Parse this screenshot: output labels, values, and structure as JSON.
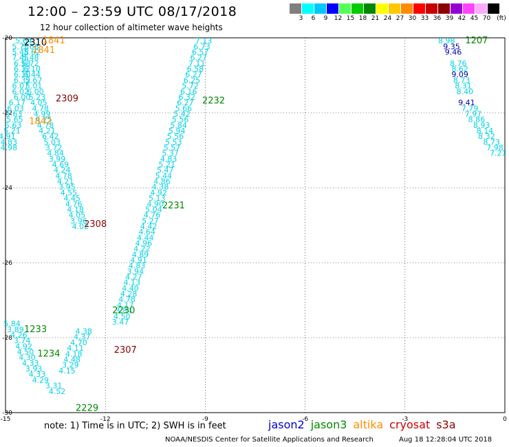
{
  "header": {
    "title": "12:00 – 23:59 UTC 08/17/2018",
    "subtitle": "12 hour collection of altimeter wave heights"
  },
  "color_scale": {
    "unit": "(ft)",
    "bins": [
      {
        "color": "#7f7f7f",
        "label": "3"
      },
      {
        "color": "#00ffff",
        "label": "6"
      },
      {
        "color": "#00c8ff",
        "label": "9"
      },
      {
        "color": "#0000ff",
        "label": "12"
      },
      {
        "color": "#55ff55",
        "label": "15"
      },
      {
        "color": "#00cc00",
        "label": "18"
      },
      {
        "color": "#008800",
        "label": "21"
      },
      {
        "color": "#ffff00",
        "label": "24"
      },
      {
        "color": "#ffc800",
        "label": "27"
      },
      {
        "color": "#ff8c00",
        "label": "30"
      },
      {
        "color": "#ff0000",
        "label": "33"
      },
      {
        "color": "#c80000",
        "label": "36"
      },
      {
        "color": "#8b0000",
        "label": "39"
      },
      {
        "color": "#9400d3",
        "label": "42"
      },
      {
        "color": "#ff44ff",
        "label": "45"
      },
      {
        "color": "#ffaaff",
        "label": "70"
      },
      {
        "color": "#000000",
        "label": ""
      }
    ]
  },
  "axes": {
    "lon_ticks": [
      "-15",
      "-12",
      "-9",
      "-6",
      "-3",
      "0"
    ],
    "lat_ticks": [
      "-20",
      "-22",
      "-24",
      "-26",
      "-28",
      "-30"
    ]
  },
  "colors": {
    "swh_light": "#00d2e6",
    "swh_dark": "#0000aa",
    "jason2": "#0000cc",
    "jason3": "#008800",
    "altika": "#ff8c00",
    "cryosat": "#cc0000",
    "s3a": "#8b0000",
    "time_black": "#000000"
  },
  "tracks": [
    {
      "values": [
        "5.64",
        "5.73",
        "5.48",
        "7.45",
        "6.58",
        "6.12",
        "6.10",
        "6.32",
        "6.07",
        "6.02",
        "6.00",
        "6.17",
        "6.03",
        "5.63",
        "5.65",
        "5.63",
        "5.21",
        "4.91",
        "4.83",
        "4.98"
      ],
      "lats": [
        -20.15,
        -20.3,
        -20.45,
        -20.6,
        -20.75,
        -20.9,
        -21.05,
        -21.2,
        -21.35,
        -21.5,
        -21.65,
        -21.8,
        -21.95,
        -22.1,
        -22.25,
        -22.4,
        -22.55,
        -22.7,
        -22.85,
        -23.0
      ],
      "lons": [
        -14.45,
        -14.55,
        -14.55,
        -14.55,
        -14.5,
        -14.5,
        -14.5,
        -14.5,
        -14.55,
        -14.55,
        -14.5,
        -14.65,
        -14.7,
        -14.75,
        -14.72,
        -14.77,
        -14.8,
        -14.95,
        -14.9,
        -14.9
      ],
      "shade": "light"
    },
    {
      "values": [
        "5.68",
        "5.62",
        "5.48",
        "6.72",
        "6.10",
        "6.44",
        "5.67",
        "5.01",
        "6.00",
        "5.23",
        "4.05",
        "4.78",
        "4.99",
        "4.75",
        "4.78",
        "4.21",
        "6.42",
        "5.03",
        "3.72",
        "4.84",
        "3.99",
        "4.69",
        "4.24",
        "4.78",
        "4.21",
        "3.95",
        "4.55",
        "4.45",
        "4.76",
        "4.18",
        "4.05",
        "3.96",
        "4.02"
      ],
      "lats": [
        -20.3,
        -20.45,
        -20.6,
        -20.75,
        -20.9,
        -21.05,
        -21.2,
        -21.35,
        -21.5,
        -21.65,
        -21.8,
        -21.95,
        -22.1,
        -22.25,
        -22.4,
        -22.55,
        -22.7,
        -22.85,
        -23.0,
        -23.15,
        -23.3,
        -23.45,
        -23.6,
        -23.75,
        -23.9,
        -24.05,
        -24.2,
        -24.35,
        -24.5,
        -24.65,
        -24.8,
        -24.95,
        -25.1
      ],
      "lons": [
        -14.25,
        -14.2,
        -14.25,
        -14.25,
        -14.2,
        -14.2,
        -14.15,
        -14.15,
        -14.1,
        -14.05,
        -14.0,
        -13.95,
        -13.9,
        -13.85,
        -13.8,
        -13.75,
        -13.65,
        -13.6,
        -13.55,
        -13.5,
        -13.45,
        -13.35,
        -13.3,
        -13.25,
        -13.2,
        -13.15,
        -13.1,
        -13.0,
        -12.95,
        -12.9,
        -12.85,
        -12.8,
        -12.75
      ],
      "shade": "light"
    },
    {
      "values": [
        "7.13",
        "6.73",
        "6.57",
        "6.27",
        "7.11",
        "6.58",
        "6.27",
        "6.25",
        "5.72",
        "6.16",
        "6.32",
        "6.27",
        "5.66",
        "5.42",
        "5.56",
        "5.84",
        "5.94",
        "5.56",
        "5.53",
        "5.57",
        "5.37",
        "4.83",
        "5.21",
        "5.47",
        "5.44",
        "4.86",
        "4.38",
        "4.92",
        "5.13",
        "4.90",
        "5.04",
        "4.76",
        "5.27",
        "4.42",
        "4.64",
        "4.44",
        "4.96",
        "4.22",
        "4.89",
        "4.91",
        "4.83",
        "3.94",
        "4.27",
        "4.13",
        "4.40",
        "4.28",
        "4.78",
        "4.17",
        "3.84",
        "4.50",
        "3.47"
      ],
      "lats": [
        -20.15,
        -20.3,
        -20.45,
        -20.6,
        -20.75,
        -20.9,
        -21.05,
        -21.2,
        -21.35,
        -21.5,
        -21.65,
        -21.8,
        -21.95,
        -22.1,
        -22.25,
        -22.4,
        -22.55,
        -22.7,
        -22.85,
        -23.0,
        -23.15,
        -23.3,
        -23.45,
        -23.6,
        -23.75,
        -23.9,
        -24.05,
        -24.2,
        -24.35,
        -24.5,
        -24.65,
        -24.8,
        -24.95,
        -25.1,
        -25.25,
        -25.4,
        -25.55,
        -25.7,
        -25.85,
        -26.0,
        -26.15,
        -26.3,
        -26.45,
        -26.6,
        -26.75,
        -26.9,
        -27.05,
        -27.2,
        -27.35,
        -27.5,
        -27.65
      ],
      "lons": [
        -9.05,
        -9.1,
        -9.15,
        -9.2,
        -9.25,
        -9.3,
        -9.35,
        -9.4,
        -9.45,
        -9.5,
        -9.55,
        -9.6,
        -9.65,
        -9.7,
        -9.75,
        -9.8,
        -9.85,
        -9.9,
        -9.95,
        -10.0,
        -10.05,
        -10.1,
        -10.15,
        -10.2,
        -10.25,
        -10.3,
        -10.35,
        -10.4,
        -10.45,
        -10.5,
        -10.55,
        -10.6,
        -10.65,
        -10.7,
        -10.75,
        -10.8,
        -10.85,
        -10.9,
        -10.95,
        -11.0,
        -11.05,
        -11.1,
        -11.15,
        -11.2,
        -11.25,
        -11.3,
        -11.35,
        -11.4,
        -11.45,
        -11.5,
        -11.55
      ],
      "shade": "light"
    },
    {
      "values": [
        "8.98",
        "8.76",
        "8.62",
        "8.73",
        "8.31",
        "8.40",
        "7.79",
        "7.97",
        "8.86",
        "8.93",
        "8.14",
        "8.32",
        "8.73",
        "7.98",
        "7.21"
      ],
      "lats": [
        -20.15,
        -20.75,
        -20.9,
        -21.2,
        -21.35,
        -21.5,
        -21.95,
        -22.1,
        -22.25,
        -22.4,
        -22.55,
        -22.7,
        -22.85,
        -23.0,
        -23.15
      ],
      "lons": [
        -1.75,
        -1.4,
        -1.35,
        -1.3,
        -1.25,
        -1.2,
        -1.05,
        -0.95,
        -0.85,
        -0.7,
        -0.6,
        -0.55,
        -0.4,
        -0.3,
        -0.2
      ],
      "shade": "light"
    },
    {
      "values": [
        "9.35",
        "9.46",
        "9.09",
        "9.41"
      ],
      "lats": [
        -20.3,
        -20.45,
        -21.05,
        -21.8
      ],
      "lons": [
        -1.6,
        -1.55,
        -1.35,
        -1.15
      ],
      "shade": "dark"
    },
    {
      "values": [
        "5.84",
        "3.89",
        "4.26",
        "3.74",
        "4.92",
        "4.50",
        "4.30",
        "4.33",
        "3.93",
        "4.33",
        "4.29",
        "3.31",
        "4.52"
      ],
      "lats": [
        -27.7,
        -27.85,
        -28.0,
        -28.15,
        -28.3,
        -28.45,
        -28.6,
        -28.75,
        -28.9,
        -29.05,
        -29.2,
        -29.35,
        -29.5
      ],
      "lons": [
        -14.8,
        -14.7,
        -14.6,
        -14.5,
        -14.45,
        -14.4,
        -14.35,
        -14.25,
        -14.15,
        -14.05,
        -13.95,
        -13.55,
        -13.45
      ],
      "shade": "light"
    },
    {
      "values": [
        "4.38",
        "4.37",
        "4.70",
        "4.11",
        "4.18",
        "4.48",
        "3.29",
        "4.15"
      ],
      "lats": [
        -27.9,
        -28.05,
        -28.2,
        -28.35,
        -28.5,
        -28.65,
        -28.8,
        -28.95
      ],
      "lons": [
        -12.65,
        -12.7,
        -12.8,
        -12.9,
        -12.95,
        -13.0,
        -13.05,
        -13.15
      ],
      "shade": "light"
    }
  ],
  "time_labels": [
    {
      "text": "2310",
      "lat": -20.2,
      "lon": -14.1,
      "mission": "time_black"
    },
    {
      "text": "1841",
      "lat": -20.15,
      "lon": -13.55,
      "mission": "altika"
    },
    {
      "text": "1841",
      "lat": -20.4,
      "lon": -13.85,
      "mission": "altika"
    },
    {
      "text": "1207",
      "lat": -20.15,
      "lon": -0.85,
      "mission": "jason3"
    },
    {
      "text": "2309",
      "lat": -21.7,
      "lon": -13.15,
      "mission": "s3a"
    },
    {
      "text": "2232",
      "lat": -21.75,
      "lon": -8.75,
      "mission": "jason3"
    },
    {
      "text": "1842",
      "lat": -22.3,
      "lon": -13.95,
      "mission": "altika"
    },
    {
      "text": "2231",
      "lat": -24.55,
      "lon": -9.95,
      "mission": "jason3"
    },
    {
      "text": "2308",
      "lat": -25.05,
      "lon": -12.3,
      "mission": "s3a"
    },
    {
      "text": "2230",
      "lat": -27.35,
      "lon": -11.45,
      "mission": "jason3"
    },
    {
      "text": "1233",
      "lat": -27.85,
      "lon": -14.1,
      "mission": "jason3"
    },
    {
      "text": "2307",
      "lat": -28.4,
      "lon": -11.4,
      "mission": "s3a"
    },
    {
      "text": "1234",
      "lat": -28.5,
      "lon": -13.7,
      "mission": "jason3"
    },
    {
      "text": "2229",
      "lat": -29.95,
      "lon": -12.55,
      "mission": "jason3"
    }
  ],
  "note": "note:  1) Time is in UTC;  2) SWH is in feet",
  "legend": [
    {
      "label": "jason2",
      "mission": "jason2"
    },
    {
      "label": "jason3",
      "mission": "jason3"
    },
    {
      "label": "altika",
      "mission": "altika"
    },
    {
      "label": "cryosat",
      "mission": "cryosat"
    },
    {
      "label": "s3a",
      "mission": "s3a"
    }
  ],
  "credit": "NOAA/NESDIS Center for Satellite Applications and Research",
  "timestamp": "Aug 18 12:28:04 UTC 2018"
}
